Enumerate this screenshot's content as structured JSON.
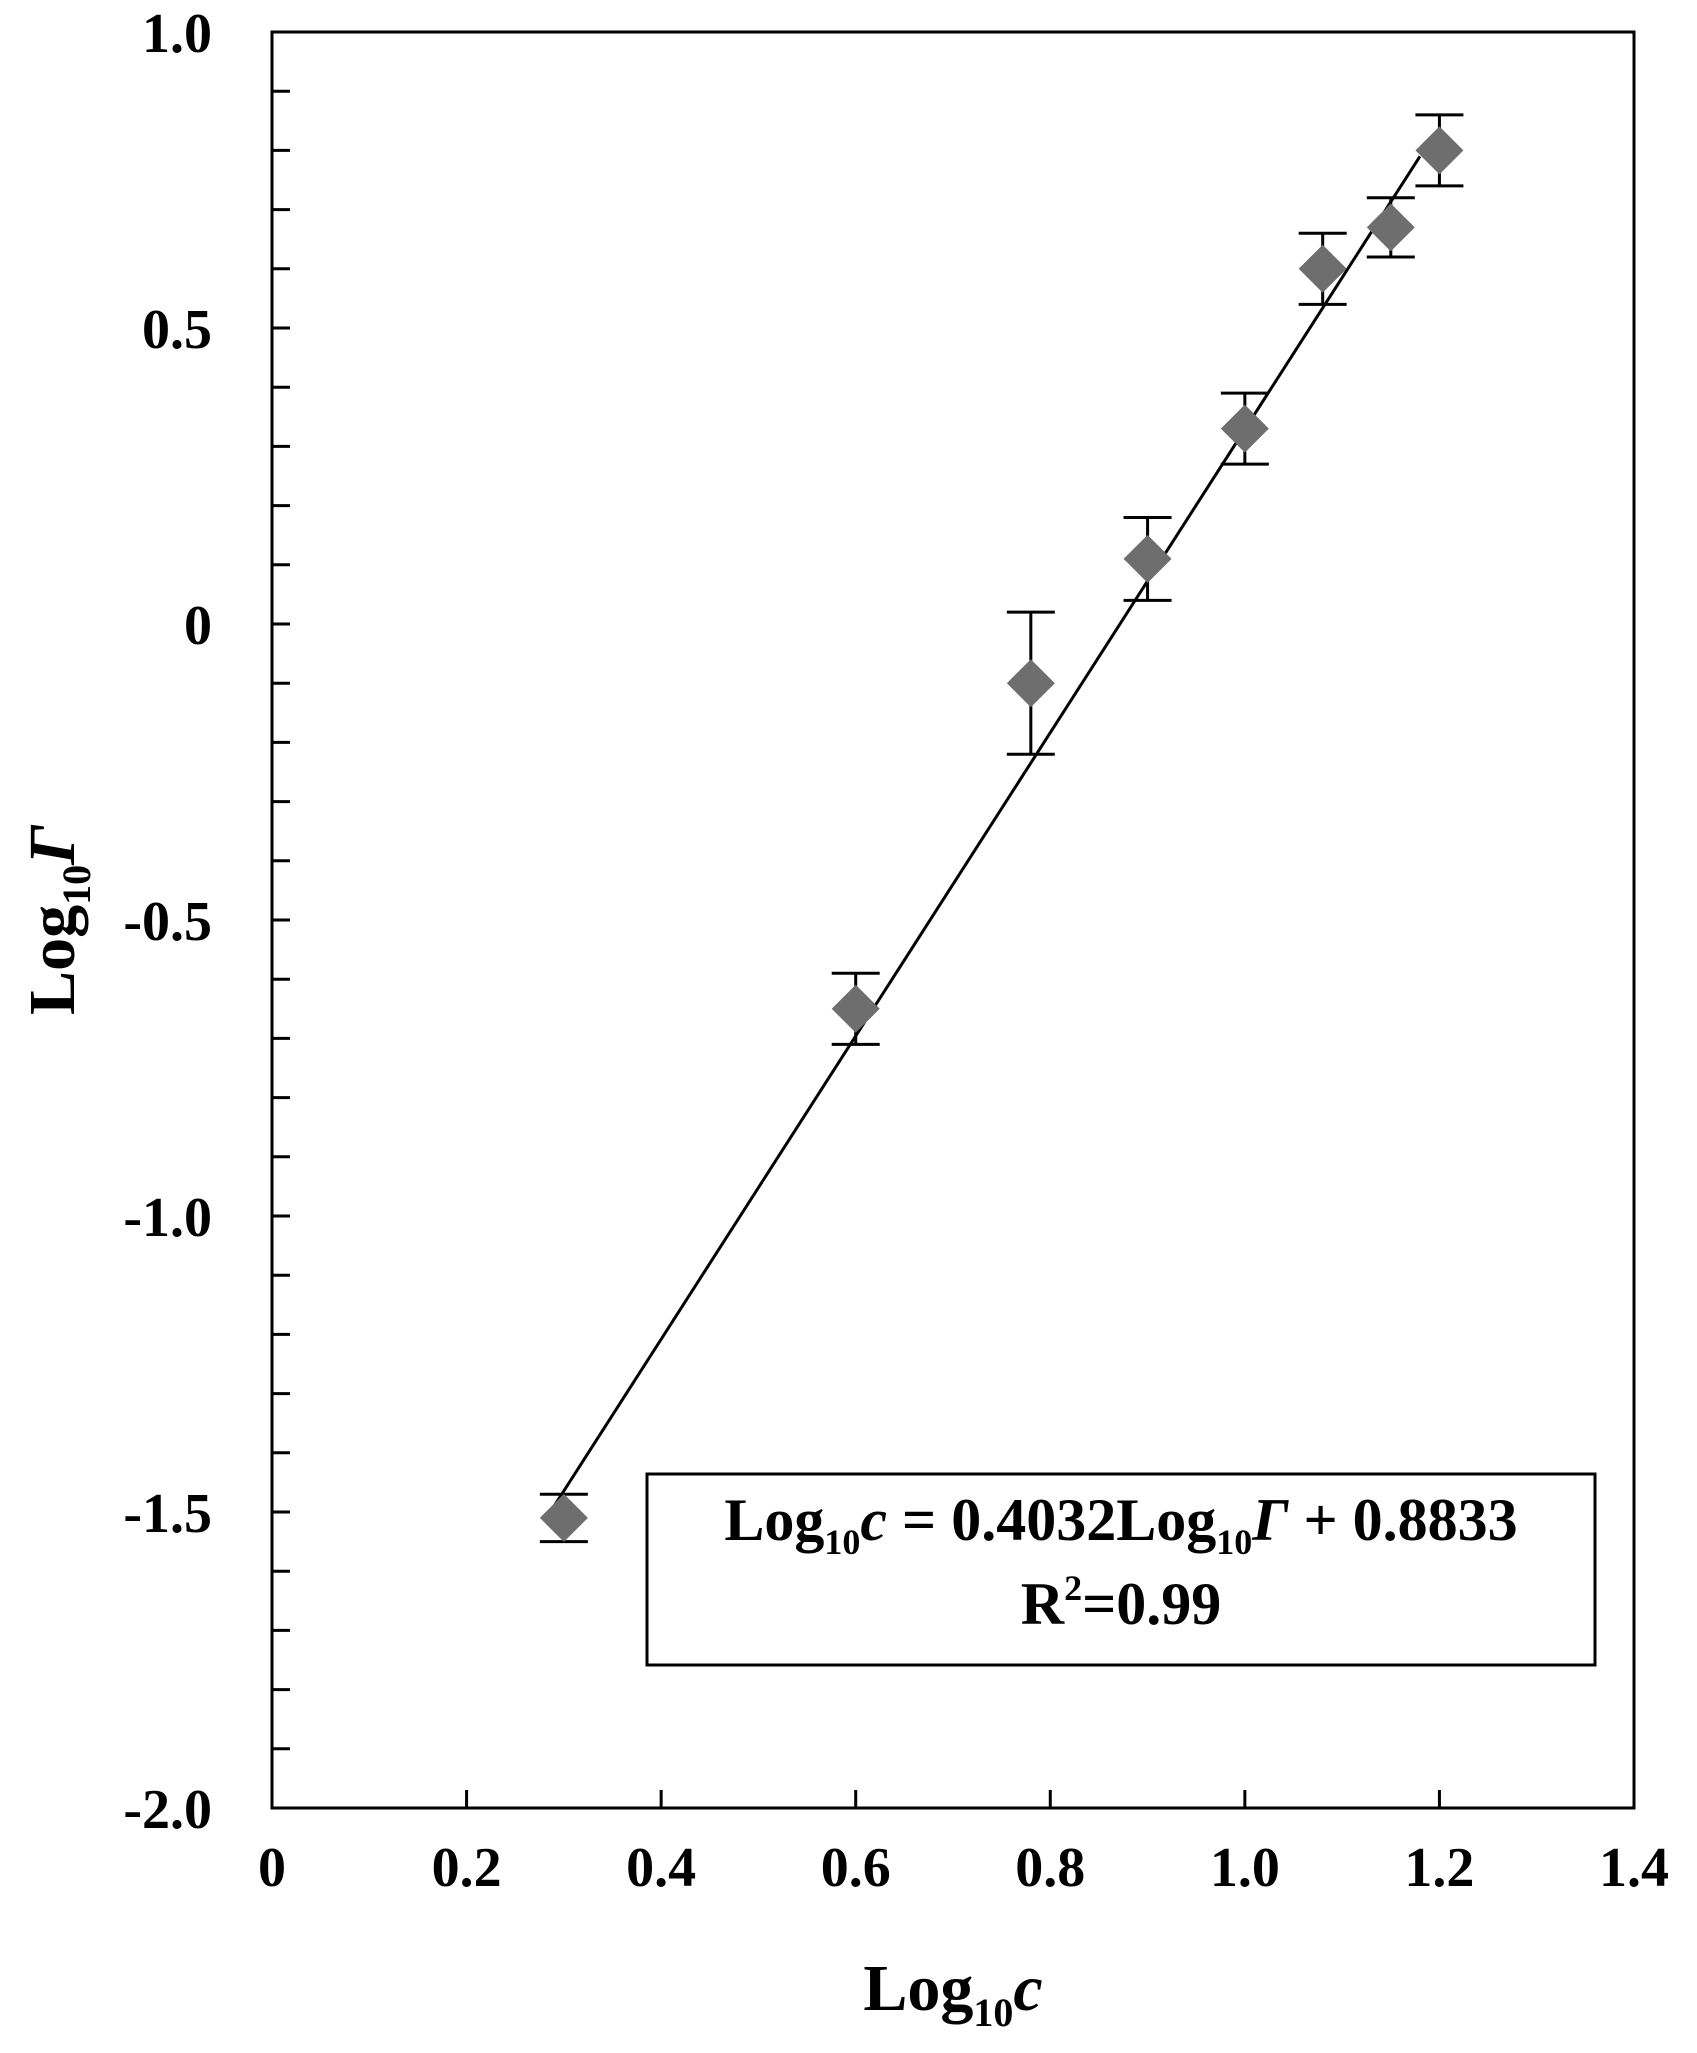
{
  "chart_data": {
    "type": "scatter",
    "title": "",
    "xlabel": {
      "main": "Log",
      "sub": "10",
      "var": "c"
    },
    "ylabel": {
      "main": "Log",
      "sub": "10",
      "var": "Γ"
    },
    "xlim": [
      0,
      1.4
    ],
    "ylim": [
      -2.0,
      1.0
    ],
    "x_ticks": [
      {
        "value": 0,
        "label": "0"
      },
      {
        "value": 0.2,
        "label": "0.2"
      },
      {
        "value": 0.4,
        "label": "0.4"
      },
      {
        "value": 0.6,
        "label": "0.6"
      },
      {
        "value": 0.8,
        "label": "0.8"
      },
      {
        "value": 1.0,
        "label": "1.0"
      },
      {
        "value": 1.2,
        "label": "1.2"
      },
      {
        "value": 1.4,
        "label": "1.4"
      }
    ],
    "y_ticks": [
      {
        "value": 1.0,
        "label": "1.0"
      },
      {
        "value": 0.5,
        "label": "0.5"
      },
      {
        "value": 0,
        "label": "0"
      },
      {
        "value": -0.5,
        "label": "-0.5"
      },
      {
        "value": -1.0,
        "label": "-1.0"
      },
      {
        "value": -1.5,
        "label": "-1.5"
      },
      {
        "value": -2.0,
        "label": "-2.0"
      }
    ],
    "y_minor_step": 0.1,
    "grid": false,
    "marker": "diamond",
    "marker_color": "#6e6e6e",
    "points": [
      {
        "x": 0.3,
        "y": -1.51,
        "err": 0.04
      },
      {
        "x": 0.6,
        "y": -0.65,
        "err": 0.06
      },
      {
        "x": 0.78,
        "y": -0.1,
        "err": 0.12
      },
      {
        "x": 0.9,
        "y": 0.11,
        "err": 0.07
      },
      {
        "x": 1.0,
        "y": 0.33,
        "err": 0.06
      },
      {
        "x": 1.08,
        "y": 0.6,
        "err": 0.06
      },
      {
        "x": 1.15,
        "y": 0.67,
        "err": 0.05
      },
      {
        "x": 1.2,
        "y": 0.8,
        "err": 0.06
      }
    ],
    "fit_line": {
      "x_start": 0.29,
      "y_start": -1.49,
      "x_end": 1.18,
      "y_end": 0.79
    },
    "annotation": {
      "line1": {
        "a": "Log",
        "a_sub": "10",
        "b": "c",
        "c": " = 0.4032Log",
        "c_sub": "10",
        "d": "Γ",
        "e": " + 0.8833"
      },
      "line2": {
        "a": "R",
        "sup": "2",
        "b": "=0.99"
      },
      "placement": "bottom-right"
    }
  }
}
